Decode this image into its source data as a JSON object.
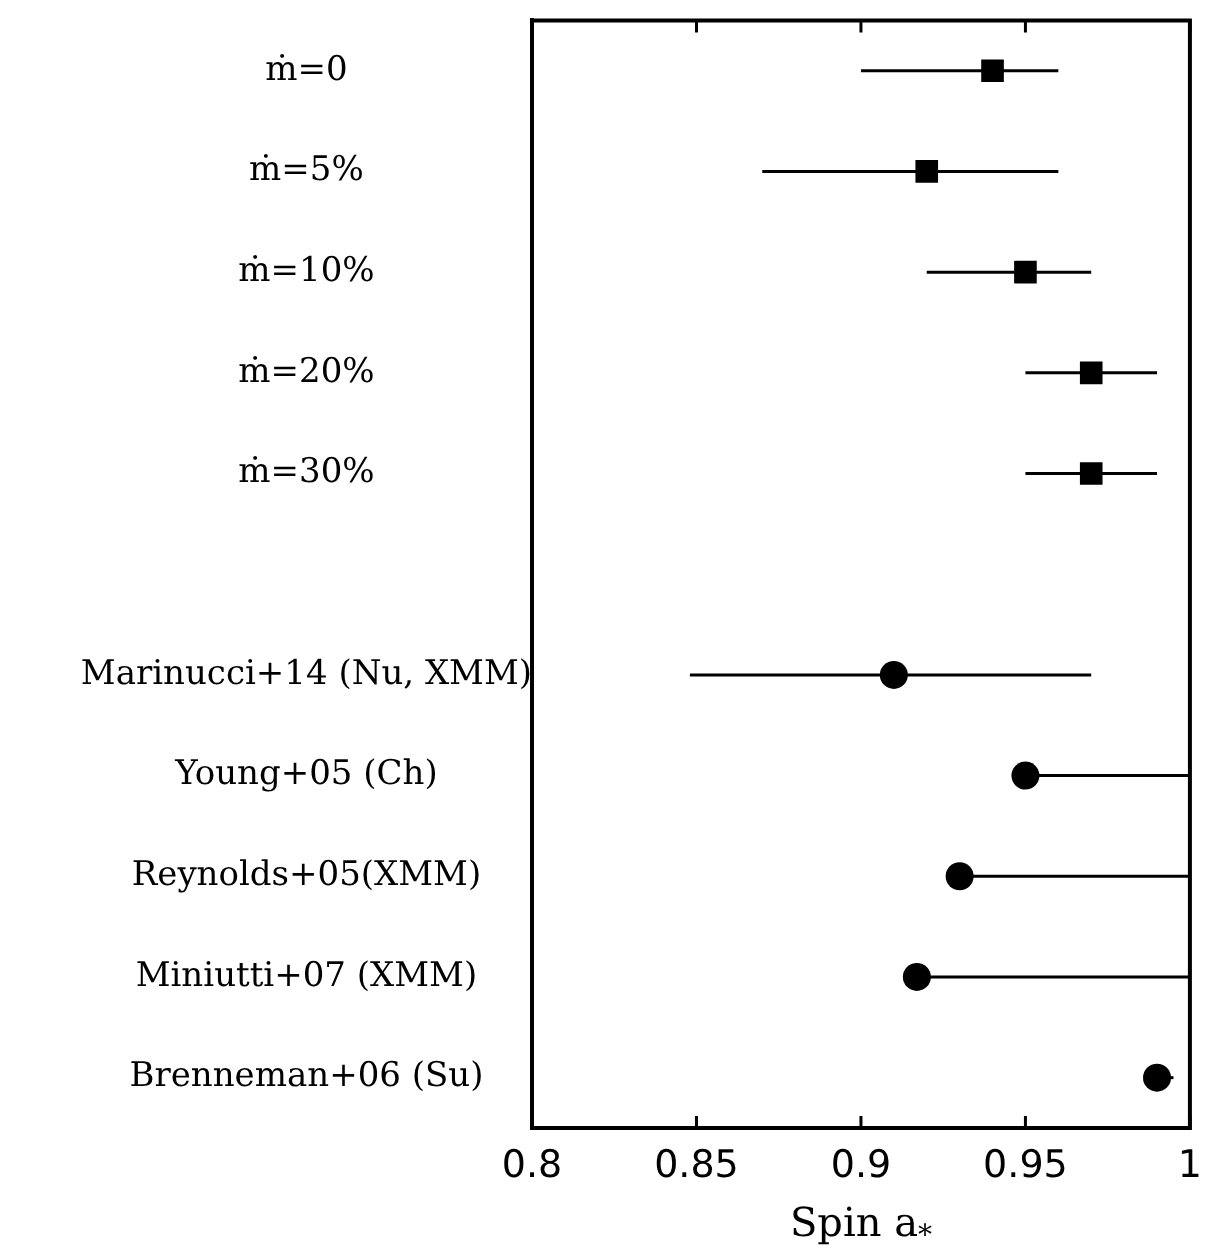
{
  "chart_data": {
    "type": "scatter",
    "orientation": "horizontal",
    "xlabel": "Spin a$_{*}$",
    "categories": [
      "ṁ=0",
      "ṁ=5%",
      "ṁ=10%",
      "ṁ=20%",
      "ṁ=30%",
      null,
      "Marinucci+14 (Nu, XMM)",
      "Young+05 (Ch)",
      "Reynolds+05(XMM)",
      "Miniutti+07 (XMM)",
      "Brenneman+06 (Su)"
    ],
    "series": [
      {
        "color": "#000000",
        "marker": "square",
        "values": [
          0.94,
          0.92,
          0.95,
          0.97,
          0.97,
          null,
          null,
          null,
          null,
          null,
          null
        ],
        "errors": [
          [
            0.9,
            0.96
          ],
          [
            0.87,
            0.96
          ],
          [
            0.92,
            0.97
          ],
          [
            0.95,
            0.99
          ],
          [
            0.95,
            0.99
          ],
          null,
          null,
          null,
          null,
          null,
          null
        ]
      },
      {
        "color": "#000000",
        "marker": "circle",
        "values": [
          null,
          null,
          null,
          null,
          null,
          null,
          0.91,
          0.95,
          0.93,
          0.917,
          0.99
        ],
        "errors": [
          null,
          null,
          null,
          null,
          null,
          null,
          [
            0.848,
            0.97
          ],
          [
            0.95,
            1
          ],
          [
            0.93,
            1
          ],
          [
            0.917,
            1
          ],
          [
            0.99,
            0.995
          ]
        ]
      }
    ],
    "xlim": [
      0.8,
      1
    ],
    "xticks": [
      0.8,
      0.85,
      0.9,
      0.95,
      1
    ],
    "grid": false,
    "legend": false
  }
}
